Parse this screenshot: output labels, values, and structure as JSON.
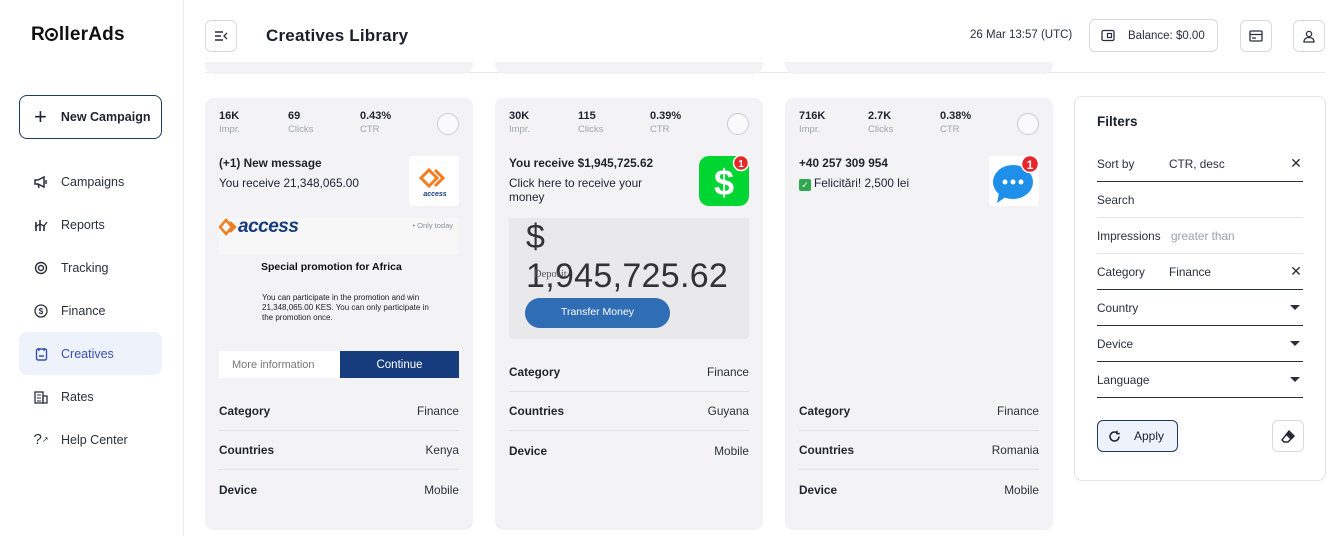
{
  "brand": {
    "name_pre": "R",
    "name_post": "llerAds"
  },
  "sidebar": {
    "new_campaign": "New Campaign",
    "items": [
      {
        "label": "Campaigns",
        "icon": "megaphone-icon"
      },
      {
        "label": "Reports",
        "icon": "chart-icon"
      },
      {
        "label": "Tracking",
        "icon": "target-icon"
      },
      {
        "label": "Finance",
        "icon": "dollar-icon"
      },
      {
        "label": "Creatives",
        "icon": "creatives-icon",
        "active": true
      },
      {
        "label": "Rates",
        "icon": "building-icon"
      },
      {
        "label": "Help Center",
        "icon": "help-icon"
      }
    ]
  },
  "header": {
    "title": "Creatives Library",
    "datetime": "26 Mar 13:57 (UTC)",
    "balance": "Balance: $0.00"
  },
  "cards": [
    {
      "impr": "16K",
      "clicks": "69",
      "ctr": "0.43%",
      "impr_label": "Impr.",
      "clicks_label": "Clicks",
      "ctr_label": "CTR",
      "title": "(+1) New message",
      "desc": "You receive 21,348,065.00",
      "icon_text": "access",
      "banner": {
        "brand": "access",
        "tag": "• Only today",
        "heading": "Special promotion for Africa",
        "body": "You can participate in the promotion and win 21,348,065.00 KES. You can only participate in the promotion once.",
        "more": "More information",
        "cta": "Continue"
      },
      "meta": [
        {
          "k": "Category",
          "v": "Finance"
        },
        {
          "k": "Countries",
          "v": "Kenya"
        },
        {
          "k": "Device",
          "v": "Mobile"
        }
      ]
    },
    {
      "impr": "30K",
      "clicks": "115",
      "ctr": "0.39%",
      "impr_label": "Impr.",
      "clicks_label": "Clicks",
      "ctr_label": "CTR",
      "title": "You receive $1,945,725.62",
      "desc": "Click here to receive your money",
      "badge": "1",
      "banner": {
        "amount": "$ 1,945,725.62",
        "label": "Deposit",
        "cta": "Transfer Money"
      },
      "meta": [
        {
          "k": "Category",
          "v": "Finance"
        },
        {
          "k": "Countries",
          "v": "Guyana"
        },
        {
          "k": "Device",
          "v": "Mobile"
        }
      ]
    },
    {
      "impr": "716K",
      "clicks": "2.7K",
      "ctr": "0.38%",
      "impr_label": "Impr.",
      "clicks_label": "Clicks",
      "ctr_label": "CTR",
      "title": "+40 257 309 954",
      "desc": "Felicitări! 2,500 lei",
      "badge": "1",
      "meta": [
        {
          "k": "Category",
          "v": "Finance"
        },
        {
          "k": "Countries",
          "v": "Romania"
        },
        {
          "k": "Device",
          "v": "Mobile"
        }
      ]
    }
  ],
  "filters": {
    "title": "Filters",
    "sort_by": {
      "label": "Sort by",
      "value": "CTR, desc"
    },
    "search": {
      "label": "Search",
      "value": ""
    },
    "impressions": {
      "label": "Impressions",
      "placeholder": "greater than"
    },
    "category": {
      "label": "Category",
      "value": "Finance"
    },
    "country": {
      "label": "Country"
    },
    "device": {
      "label": "Device"
    },
    "language": {
      "label": "Language"
    },
    "apply": "Apply"
  },
  "colors": {
    "accent": "#3a4fb0",
    "card_bg": "#f3f3f5",
    "access_orange": "#f07d22",
    "access_blue": "#173c7e",
    "cashapp_green": "#00d632"
  }
}
